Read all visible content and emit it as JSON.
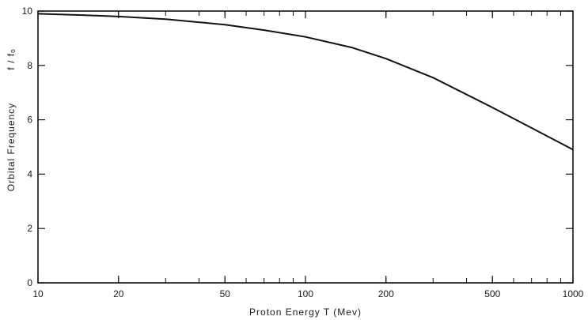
{
  "chart_data": {
    "type": "line",
    "title": "",
    "xlabel": "Proton Energy T (Mev)",
    "ylabel": "Orbital Frequency",
    "ylabel_unit": "f / fₒ",
    "x_scale": "log",
    "xlim": [
      10,
      1000
    ],
    "ylim": [
      0,
      10
    ],
    "x_ticks": [
      10,
      20,
      50,
      100,
      200,
      500,
      1000
    ],
    "x_tick_labels": [
      "10",
      "20",
      "50",
      "100",
      "200",
      "500",
      "1000"
    ],
    "y_ticks": [
      0,
      2,
      4,
      6,
      8,
      10
    ],
    "y_tick_labels": [
      "0",
      "2",
      "4",
      "6",
      "8",
      "10"
    ],
    "grid": false,
    "series": [
      {
        "color": "#111111",
        "x": [
          10,
          15,
          20,
          30,
          50,
          70,
          100,
          150,
          200,
          300,
          500,
          700,
          1000
        ],
        "y": [
          9.9,
          9.85,
          9.8,
          9.7,
          9.5,
          9.3,
          9.05,
          8.65,
          8.25,
          7.55,
          6.45,
          5.7,
          4.9
        ]
      }
    ]
  }
}
